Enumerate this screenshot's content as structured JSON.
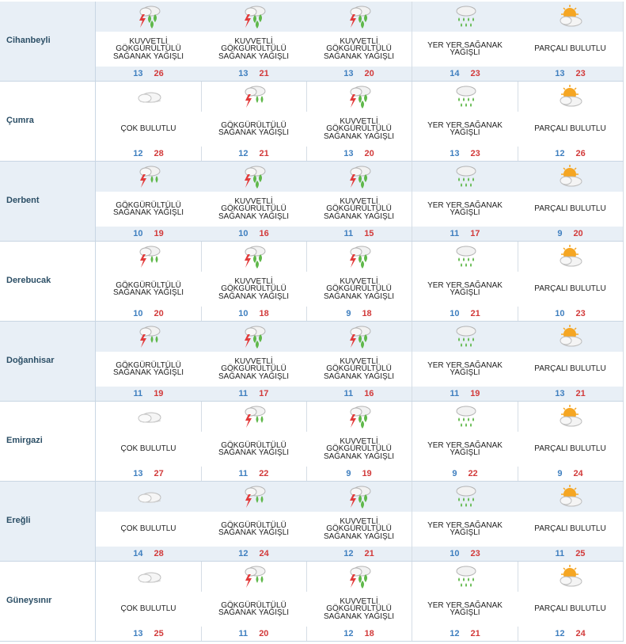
{
  "days": 5,
  "cities": [
    {
      "name": "Cihanbeyli",
      "forecasts": [
        {
          "icon": "heavy-thunder-rain-icon",
          "desc": "KUVVETLİ GÖKGÜRÜLTÜLÜ SAĞANAK YAĞIŞLI",
          "min": "13",
          "max": "26"
        },
        {
          "icon": "heavy-thunder-rain-icon",
          "desc": "KUVVETLİ GÖKGÜRÜLTÜLÜ SAĞANAK YAĞIŞLI",
          "min": "13",
          "max": "21"
        },
        {
          "icon": "heavy-thunder-rain-icon",
          "desc": "KUVVETLİ GÖKGÜRÜLTÜLÜ SAĞANAK YAĞIŞLI",
          "min": "13",
          "max": "20"
        },
        {
          "icon": "scattered-showers-icon",
          "desc": "YER YER SAĞANAK YAĞIŞLI",
          "min": "14",
          "max": "23"
        },
        {
          "icon": "partly-cloudy-icon",
          "desc": "PARÇALI BULUTLU",
          "min": "13",
          "max": "23"
        }
      ]
    },
    {
      "name": "Çumra",
      "forecasts": [
        {
          "icon": "overcast-icon",
          "desc": "ÇOK BULUTLU",
          "min": "12",
          "max": "28"
        },
        {
          "icon": "thunder-rain-icon",
          "desc": "GÖKGÜRÜLTÜLÜ SAĞANAK YAĞIŞLI",
          "min": "12",
          "max": "21"
        },
        {
          "icon": "heavy-thunder-rain-icon",
          "desc": "KUVVETLİ GÖKGÜRÜLTÜLÜ SAĞANAK YAĞIŞLI",
          "min": "13",
          "max": "20"
        },
        {
          "icon": "scattered-showers-icon",
          "desc": "YER YER SAĞANAK YAĞIŞLI",
          "min": "13",
          "max": "23"
        },
        {
          "icon": "partly-cloudy-icon",
          "desc": "PARÇALI BULUTLU",
          "min": "12",
          "max": "26"
        }
      ]
    },
    {
      "name": "Derbent",
      "forecasts": [
        {
          "icon": "thunder-rain-icon",
          "desc": "GÖKGÜRÜLTÜLÜ SAĞANAK YAĞIŞLI",
          "min": "10",
          "max": "19"
        },
        {
          "icon": "heavy-thunder-rain-icon",
          "desc": "KUVVETLİ GÖKGÜRÜLTÜLÜ SAĞANAK YAĞIŞLI",
          "min": "10",
          "max": "16"
        },
        {
          "icon": "heavy-thunder-rain-icon",
          "desc": "KUVVETLİ GÖKGÜRÜLTÜLÜ SAĞANAK YAĞIŞLI",
          "min": "11",
          "max": "15"
        },
        {
          "icon": "scattered-showers-icon",
          "desc": "YER YER SAĞANAK YAĞIŞLI",
          "min": "11",
          "max": "17"
        },
        {
          "icon": "partly-cloudy-icon",
          "desc": "PARÇALI BULUTLU",
          "min": "9",
          "max": "20"
        }
      ]
    },
    {
      "name": "Derebucak",
      "forecasts": [
        {
          "icon": "thunder-rain-icon",
          "desc": "GÖKGÜRÜLTÜLÜ SAĞANAK YAĞIŞLI",
          "min": "10",
          "max": "20"
        },
        {
          "icon": "heavy-thunder-rain-icon",
          "desc": "KUVVETLİ GÖKGÜRÜLTÜLÜ SAĞANAK YAĞIŞLI",
          "min": "10",
          "max": "18"
        },
        {
          "icon": "heavy-thunder-rain-icon",
          "desc": "KUVVETLİ GÖKGÜRÜLTÜLÜ SAĞANAK YAĞIŞLI",
          "min": "9",
          "max": "18"
        },
        {
          "icon": "scattered-showers-icon",
          "desc": "YER YER SAĞANAK YAĞIŞLI",
          "min": "10",
          "max": "21"
        },
        {
          "icon": "partly-cloudy-icon",
          "desc": "PARÇALI BULUTLU",
          "min": "10",
          "max": "23"
        }
      ]
    },
    {
      "name": "Doğanhisar",
      "forecasts": [
        {
          "icon": "thunder-rain-icon",
          "desc": "GÖKGÜRÜLTÜLÜ SAĞANAK YAĞIŞLI",
          "min": "11",
          "max": "19"
        },
        {
          "icon": "heavy-thunder-rain-icon",
          "desc": "KUVVETLİ GÖKGÜRÜLTÜLÜ SAĞANAK YAĞIŞLI",
          "min": "11",
          "max": "17"
        },
        {
          "icon": "heavy-thunder-rain-icon",
          "desc": "KUVVETLİ GÖKGÜRÜLTÜLÜ SAĞANAK YAĞIŞLI",
          "min": "11",
          "max": "16"
        },
        {
          "icon": "scattered-showers-icon",
          "desc": "YER YER SAĞANAK YAĞIŞLI",
          "min": "11",
          "max": "19"
        },
        {
          "icon": "partly-cloudy-icon",
          "desc": "PARÇALI BULUTLU",
          "min": "13",
          "max": "21"
        }
      ]
    },
    {
      "name": "Emirgazi",
      "forecasts": [
        {
          "icon": "overcast-icon",
          "desc": "ÇOK BULUTLU",
          "min": "13",
          "max": "27"
        },
        {
          "icon": "thunder-rain-icon",
          "desc": "GÖKGÜRÜLTÜLÜ SAĞANAK YAĞIŞLI",
          "min": "11",
          "max": "22"
        },
        {
          "icon": "heavy-thunder-rain-icon",
          "desc": "KUVVETLİ GÖKGÜRÜLTÜLÜ SAĞANAK YAĞIŞLI",
          "min": "9",
          "max": "19"
        },
        {
          "icon": "scattered-showers-icon",
          "desc": "YER YER SAĞANAK YAĞIŞLI",
          "min": "9",
          "max": "22"
        },
        {
          "icon": "partly-cloudy-icon",
          "desc": "PARÇALI BULUTLU",
          "min": "9",
          "max": "24"
        }
      ]
    },
    {
      "name": "Ereğli",
      "forecasts": [
        {
          "icon": "overcast-icon",
          "desc": "ÇOK BULUTLU",
          "min": "14",
          "max": "28"
        },
        {
          "icon": "thunder-rain-icon",
          "desc": "GÖKGÜRÜLTÜLÜ SAĞANAK YAĞIŞLI",
          "min": "12",
          "max": "24"
        },
        {
          "icon": "heavy-thunder-rain-icon",
          "desc": "KUVVETLİ GÖKGÜRÜLTÜLÜ SAĞANAK YAĞIŞLI",
          "min": "12",
          "max": "21"
        },
        {
          "icon": "scattered-showers-icon",
          "desc": "YER YER SAĞANAK YAĞIŞLI",
          "min": "10",
          "max": "23"
        },
        {
          "icon": "partly-cloudy-icon",
          "desc": "PARÇALI BULUTLU",
          "min": "11",
          "max": "25"
        }
      ]
    },
    {
      "name": "Güneysınır",
      "forecasts": [
        {
          "icon": "overcast-icon",
          "desc": "ÇOK BULUTLU",
          "min": "13",
          "max": "25"
        },
        {
          "icon": "thunder-rain-icon",
          "desc": "GÖKGÜRÜLTÜLÜ SAĞANAK YAĞIŞLI",
          "min": "11",
          "max": "20"
        },
        {
          "icon": "heavy-thunder-rain-icon",
          "desc": "KUVVETLİ GÖKGÜRÜLTÜLÜ SAĞANAK YAĞIŞLI",
          "min": "12",
          "max": "18"
        },
        {
          "icon": "scattered-showers-icon",
          "desc": "YER YER SAĞANAK YAĞIŞLI",
          "min": "12",
          "max": "21"
        },
        {
          "icon": "partly-cloudy-icon",
          "desc": "PARÇALI BULUTLU",
          "min": "12",
          "max": "24"
        }
      ]
    }
  ],
  "colors": {
    "min": "#3f7fbf",
    "max": "#d23a3a",
    "shade": "#e8eff6",
    "city": "#2c4f66"
  }
}
